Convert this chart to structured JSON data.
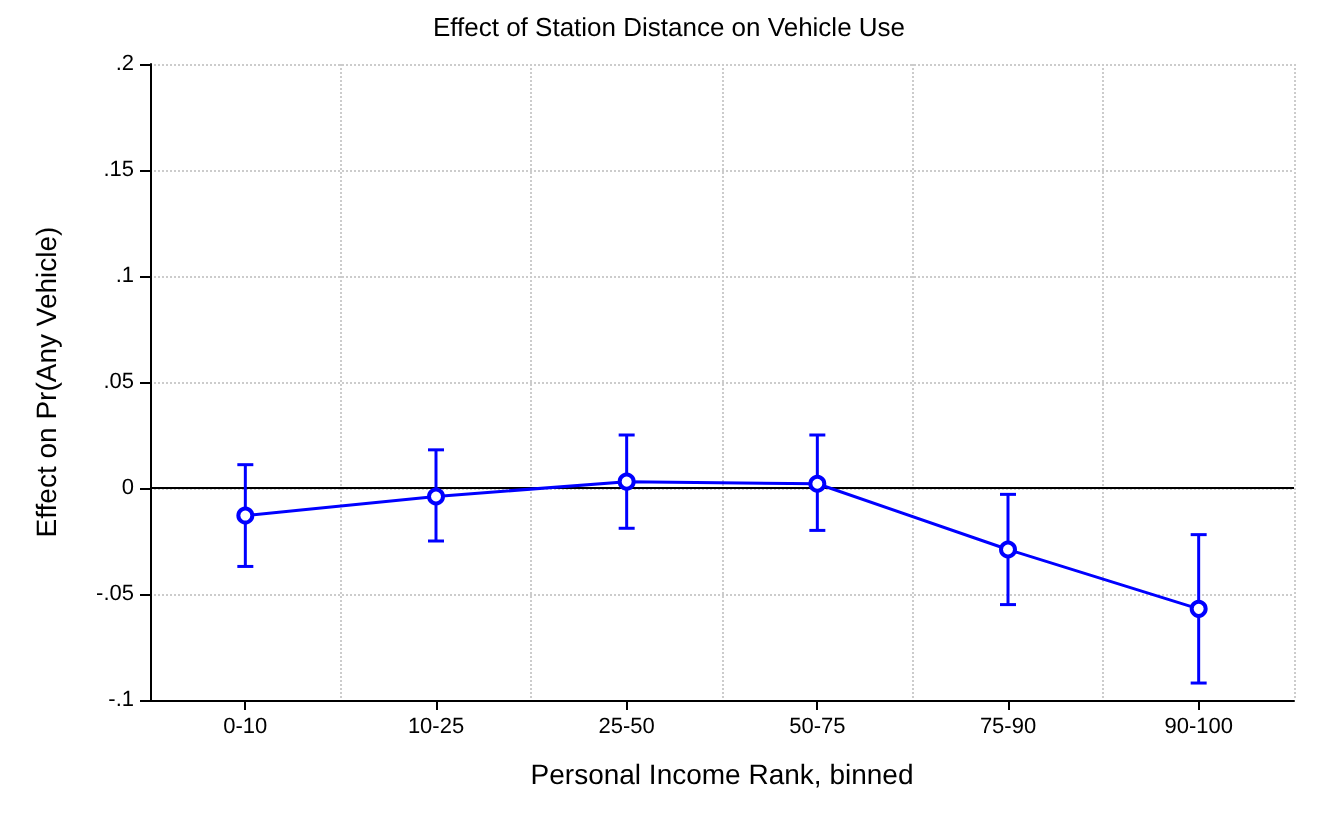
{
  "chart_data": {
    "type": "line",
    "title": "Effect of Station Distance on Vehicle Use",
    "xlabel": "Personal Income Rank, binned",
    "ylabel": "Effect on Pr(Any Vehicle)",
    "categories": [
      "0-10",
      "10-25",
      "25-50",
      "50-75",
      "75-90",
      "90-100"
    ],
    "series": [
      {
        "color": "#0000ff",
        "values": [
          -0.013,
          -0.004,
          0.003,
          0.002,
          -0.029,
          -0.057
        ],
        "errors": [
          [
            -0.037,
            0.011
          ],
          [
            -0.025,
            0.018
          ],
          [
            -0.019,
            0.025
          ],
          [
            -0.02,
            0.025
          ],
          [
            -0.055,
            -0.003
          ],
          [
            -0.092,
            -0.022
          ]
        ]
      }
    ],
    "ylim": [
      -0.1,
      0.2
    ],
    "yticks": [
      {
        "value": -0.1,
        "label": "-.1"
      },
      {
        "value": -0.05,
        "label": "-.05"
      },
      0,
      {
        "value": 0.05,
        "label": ".05"
      },
      {
        "value": 0.1,
        "label": ".1"
      },
      {
        "value": 0.15,
        "label": ".15"
      },
      {
        "value": 0.2,
        "label": ".2"
      }
    ],
    "ref_lines": [
      {
        "axis": "y",
        "value": 0,
        "color": "#000000"
      }
    ],
    "grid": true,
    "marker": "circle",
    "line_style": "solid"
  }
}
